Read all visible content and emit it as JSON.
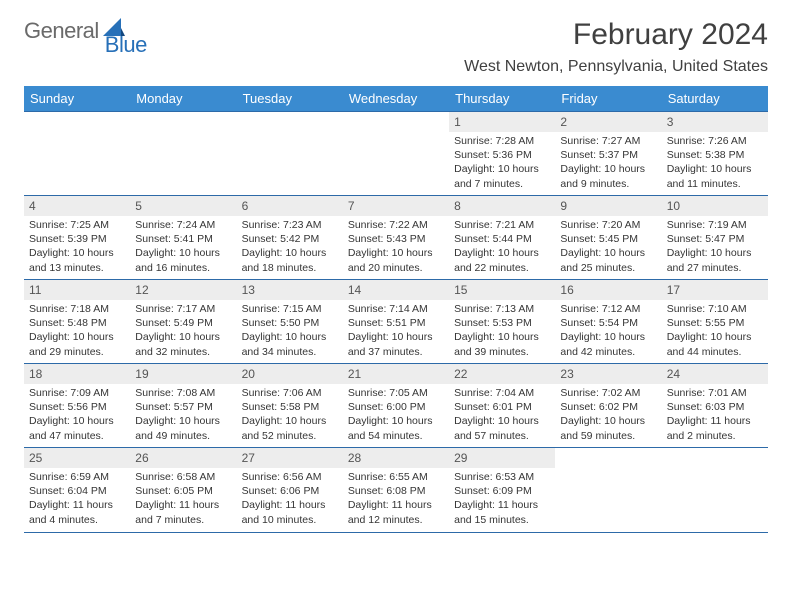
{
  "logo": {
    "part1": "General",
    "part2": "Blue"
  },
  "title": "February 2024",
  "location": "West Newton, Pennsylvania, United States",
  "colors": {
    "header_bg": "#3a8bd0",
    "header_text": "#ffffff",
    "daynum_bg": "#ededed",
    "daynum_text": "#555555",
    "body_text": "#353535",
    "rule": "#2d6aa8",
    "logo_gray": "#6a6a6a",
    "logo_blue": "#2770b8"
  },
  "day_headers": [
    "Sunday",
    "Monday",
    "Tuesday",
    "Wednesday",
    "Thursday",
    "Friday",
    "Saturday"
  ],
  "weeks": [
    [
      null,
      null,
      null,
      null,
      {
        "n": "1",
        "sunrise": "7:28 AM",
        "sunset": "5:36 PM",
        "daylight": "10 hours and 7 minutes."
      },
      {
        "n": "2",
        "sunrise": "7:27 AM",
        "sunset": "5:37 PM",
        "daylight": "10 hours and 9 minutes."
      },
      {
        "n": "3",
        "sunrise": "7:26 AM",
        "sunset": "5:38 PM",
        "daylight": "10 hours and 11 minutes."
      }
    ],
    [
      {
        "n": "4",
        "sunrise": "7:25 AM",
        "sunset": "5:39 PM",
        "daylight": "10 hours and 13 minutes."
      },
      {
        "n": "5",
        "sunrise": "7:24 AM",
        "sunset": "5:41 PM",
        "daylight": "10 hours and 16 minutes."
      },
      {
        "n": "6",
        "sunrise": "7:23 AM",
        "sunset": "5:42 PM",
        "daylight": "10 hours and 18 minutes."
      },
      {
        "n": "7",
        "sunrise": "7:22 AM",
        "sunset": "5:43 PM",
        "daylight": "10 hours and 20 minutes."
      },
      {
        "n": "8",
        "sunrise": "7:21 AM",
        "sunset": "5:44 PM",
        "daylight": "10 hours and 22 minutes."
      },
      {
        "n": "9",
        "sunrise": "7:20 AM",
        "sunset": "5:45 PM",
        "daylight": "10 hours and 25 minutes."
      },
      {
        "n": "10",
        "sunrise": "7:19 AM",
        "sunset": "5:47 PM",
        "daylight": "10 hours and 27 minutes."
      }
    ],
    [
      {
        "n": "11",
        "sunrise": "7:18 AM",
        "sunset": "5:48 PM",
        "daylight": "10 hours and 29 minutes."
      },
      {
        "n": "12",
        "sunrise": "7:17 AM",
        "sunset": "5:49 PM",
        "daylight": "10 hours and 32 minutes."
      },
      {
        "n": "13",
        "sunrise": "7:15 AM",
        "sunset": "5:50 PM",
        "daylight": "10 hours and 34 minutes."
      },
      {
        "n": "14",
        "sunrise": "7:14 AM",
        "sunset": "5:51 PM",
        "daylight": "10 hours and 37 minutes."
      },
      {
        "n": "15",
        "sunrise": "7:13 AM",
        "sunset": "5:53 PM",
        "daylight": "10 hours and 39 minutes."
      },
      {
        "n": "16",
        "sunrise": "7:12 AM",
        "sunset": "5:54 PM",
        "daylight": "10 hours and 42 minutes."
      },
      {
        "n": "17",
        "sunrise": "7:10 AM",
        "sunset": "5:55 PM",
        "daylight": "10 hours and 44 minutes."
      }
    ],
    [
      {
        "n": "18",
        "sunrise": "7:09 AM",
        "sunset": "5:56 PM",
        "daylight": "10 hours and 47 minutes."
      },
      {
        "n": "19",
        "sunrise": "7:08 AM",
        "sunset": "5:57 PM",
        "daylight": "10 hours and 49 minutes."
      },
      {
        "n": "20",
        "sunrise": "7:06 AM",
        "sunset": "5:58 PM",
        "daylight": "10 hours and 52 minutes."
      },
      {
        "n": "21",
        "sunrise": "7:05 AM",
        "sunset": "6:00 PM",
        "daylight": "10 hours and 54 minutes."
      },
      {
        "n": "22",
        "sunrise": "7:04 AM",
        "sunset": "6:01 PM",
        "daylight": "10 hours and 57 minutes."
      },
      {
        "n": "23",
        "sunrise": "7:02 AM",
        "sunset": "6:02 PM",
        "daylight": "10 hours and 59 minutes."
      },
      {
        "n": "24",
        "sunrise": "7:01 AM",
        "sunset": "6:03 PM",
        "daylight": "11 hours and 2 minutes."
      }
    ],
    [
      {
        "n": "25",
        "sunrise": "6:59 AM",
        "sunset": "6:04 PM",
        "daylight": "11 hours and 4 minutes."
      },
      {
        "n": "26",
        "sunrise": "6:58 AM",
        "sunset": "6:05 PM",
        "daylight": "11 hours and 7 minutes."
      },
      {
        "n": "27",
        "sunrise": "6:56 AM",
        "sunset": "6:06 PM",
        "daylight": "11 hours and 10 minutes."
      },
      {
        "n": "28",
        "sunrise": "6:55 AM",
        "sunset": "6:08 PM",
        "daylight": "11 hours and 12 minutes."
      },
      {
        "n": "29",
        "sunrise": "6:53 AM",
        "sunset": "6:09 PM",
        "daylight": "11 hours and 15 minutes."
      },
      null,
      null
    ]
  ],
  "labels": {
    "sunrise": "Sunrise:",
    "sunset": "Sunset:",
    "daylight": "Daylight:"
  }
}
